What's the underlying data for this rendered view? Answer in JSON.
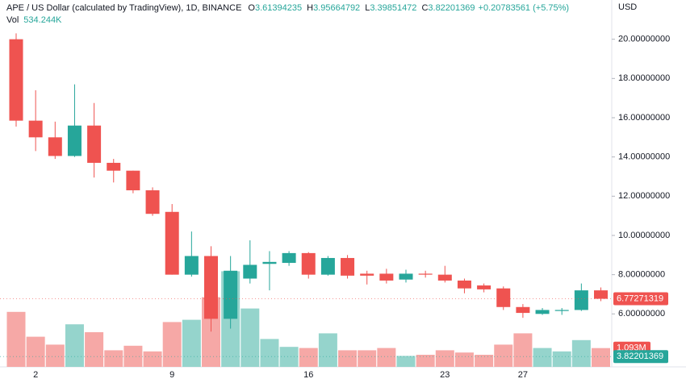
{
  "chart_data": {
    "type": "candlestick",
    "header": {
      "symbol": "APE / US Dollar (calculated by TradingView), 1D, BINANCE",
      "ohlc": [
        {
          "key": "O",
          "value": "3.61394235"
        },
        {
          "key": "H",
          "value": "3.95664792"
        },
        {
          "key": "L",
          "value": "3.39851472"
        },
        {
          "key": "C",
          "value": "3.82201369"
        }
      ],
      "change": "+0.20783561 (+5.75%)",
      "vol_key": "Vol",
      "vol_value": "534.244K"
    },
    "currency": "USD",
    "categories": [
      null,
      "2",
      null,
      null,
      null,
      null,
      null,
      null,
      "9",
      null,
      null,
      null,
      null,
      null,
      null,
      "16",
      null,
      null,
      null,
      null,
      null,
      null,
      "23",
      null,
      null,
      null,
      "27",
      null,
      null,
      null,
      null
    ],
    "open": [
      20.0,
      15.85,
      15.0,
      14.05,
      15.6,
      13.7,
      13.3,
      12.3,
      11.2,
      8.0,
      8.95,
      5.75,
      7.8,
      8.55,
      8.6,
      9.1,
      8.0,
      8.85,
      8.05,
      8.05,
      7.75,
      8.05,
      8.0,
      7.7,
      7.45,
      7.3,
      6.35,
      6.0,
      6.15,
      6.2,
      7.2
    ],
    "high": [
      20.3,
      17.4,
      15.8,
      17.7,
      16.75,
      13.9,
      13.3,
      12.45,
      11.6,
      10.2,
      9.45,
      8.95,
      9.75,
      9.2,
      9.2,
      9.15,
      8.95,
      9.0,
      8.2,
      8.3,
      8.25,
      8.2,
      8.45,
      7.8,
      7.55,
      7.4,
      6.5,
      6.3,
      6.3,
      7.55,
      7.35
    ],
    "low": [
      15.55,
      14.3,
      13.9,
      14.0,
      12.95,
      12.7,
      12.15,
      11.0,
      8.0,
      7.9,
      5.1,
      5.25,
      7.55,
      7.2,
      8.45,
      7.8,
      7.95,
      7.8,
      7.5,
      7.55,
      7.6,
      7.85,
      7.6,
      7.05,
      7.1,
      6.2,
      5.8,
      5.95,
      5.95,
      6.15,
      6.65
    ],
    "close": [
      15.85,
      15.0,
      14.05,
      15.6,
      13.7,
      13.3,
      12.3,
      11.1,
      8.0,
      8.95,
      5.75,
      8.2,
      8.5,
      8.65,
      9.1,
      8.0,
      8.85,
      7.95,
      7.95,
      7.7,
      8.05,
      8.0,
      7.7,
      7.3,
      7.25,
      6.35,
      6.05,
      6.2,
      6.2,
      7.2,
      6.77
    ],
    "volumes": [
      4.3,
      2.1,
      1.4,
      3.2,
      2.5,
      0.9,
      1.3,
      0.8,
      3.4,
      3.6,
      5.6,
      7.9,
      4.6,
      1.9,
      1.2,
      1.1,
      2.4,
      0.9,
      0.9,
      1.1,
      0.4,
      0.5,
      0.9,
      0.7,
      0.5,
      1.4,
      2.4,
      1.1,
      0.8,
      1.8,
      1.093
    ],
    "volume_ylim": [
      0,
      8.5
    ],
    "volume_label": {
      "value": 1.093,
      "label": "1.093M"
    },
    "up_color": "#26a69a",
    "down_color": "#ef5350",
    "up_volume_color": "#95d4cc",
    "down_volume_color": "#f6a8a6",
    "ylim": [
      3.3,
      22.0
    ],
    "yticks": [
      {
        "value": 6,
        "label": "6.00000000"
      },
      {
        "value": 8,
        "label": "8.00000000"
      },
      {
        "value": 10,
        "label": "10.00000000"
      },
      {
        "value": 12,
        "label": "12.00000000"
      },
      {
        "value": 14,
        "label": "14.00000000"
      },
      {
        "value": 16,
        "label": "16.00000000"
      },
      {
        "value": 18,
        "label": "18.00000000"
      },
      {
        "value": 20,
        "label": "20.00000000"
      }
    ],
    "price_labels": [
      {
        "value": 6.77271319,
        "color": "#ef5350"
      },
      {
        "value": 3.82201369,
        "color": "#26a69a"
      }
    ],
    "grid": false
  }
}
